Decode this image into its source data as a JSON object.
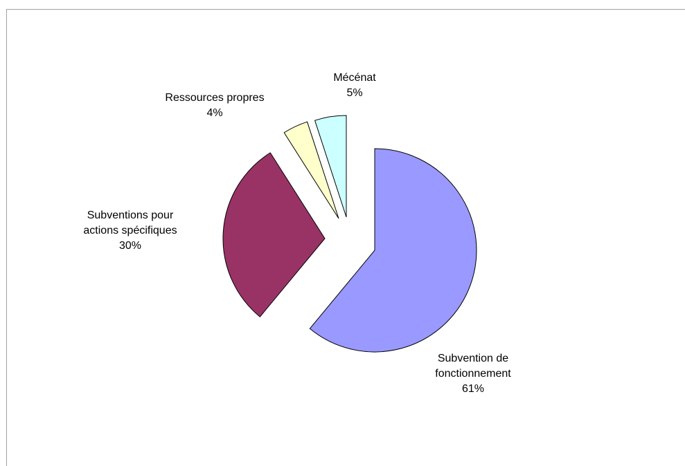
{
  "chart_data": {
    "type": "pie",
    "exploded": true,
    "legend": "none",
    "slices": [
      {
        "label_lines": [
          "Subvention de",
          "fonctionnement"
        ],
        "percent_label": "61%",
        "value": 61,
        "color": "#9999ff"
      },
      {
        "label_lines": [
          "Subventions pour",
          "actions spécifiques"
        ],
        "percent_label": "30%",
        "value": 30,
        "color": "#993366"
      },
      {
        "label_lines": [
          "Ressources propres"
        ],
        "percent_label": "4%",
        "value": 4,
        "color": "#ffffcc"
      },
      {
        "label_lines": [
          "Mécénat"
        ],
        "percent_label": "5%",
        "value": 5,
        "color": "#ccffff"
      }
    ]
  }
}
